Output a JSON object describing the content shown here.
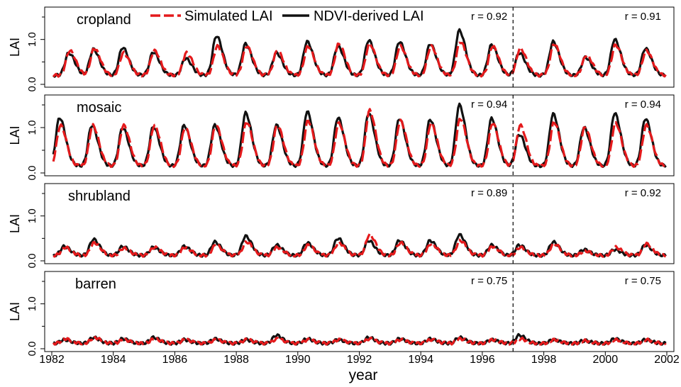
{
  "chart_data": {
    "type": "line",
    "xlabel": "year",
    "ylabel": "LAI",
    "xlim": [
      1982,
      2002
    ],
    "ylim": [
      0,
      1.5
    ],
    "x_ticks": [
      "1982",
      "1984",
      "1986",
      "1988",
      "1990",
      "1992",
      "1994",
      "1996",
      "1998",
      "2000",
      "2002"
    ],
    "y_ticks": [
      "0.0",
      "1.0"
    ],
    "divider_x": 1997,
    "legend": {
      "location": "top-center",
      "entries": [
        {
          "name": "Simulated LAI",
          "color": "#e41a1c",
          "style": "dashed"
        },
        {
          "name": "NDVI-derived LAI",
          "color": "#111111",
          "style": "solid"
        }
      ]
    },
    "colors": {
      "simulated": "#e41a1c",
      "ndvi": "#111111",
      "divider": "#000000"
    },
    "panels": [
      {
        "label": "cropland",
        "r_before": "r = 0.92",
        "r_after": "r = 0.91",
        "peak_years": [
          1982.55,
          1983.35,
          1984.3,
          1985.3,
          1986.35,
          1987.35,
          1988.3,
          1989.3,
          1990.3,
          1991.3,
          1992.3,
          1993.3,
          1994.3,
          1995.25,
          1996.3,
          1997.2,
          1998.3,
          1999.35,
          2000.3,
          2001.3
        ],
        "ndvi_peaks": [
          0.7,
          0.78,
          0.82,
          0.72,
          0.58,
          1.08,
          0.9,
          0.7,
          0.95,
          0.85,
          0.98,
          0.95,
          0.9,
          1.2,
          0.88,
          0.7,
          0.95,
          0.6,
          1.0,
          0.8
        ],
        "sim_peaks": [
          0.75,
          0.8,
          0.7,
          0.75,
          0.7,
          0.85,
          0.85,
          0.75,
          0.85,
          0.9,
          0.9,
          0.85,
          0.85,
          0.95,
          0.85,
          0.8,
          0.9,
          0.65,
          0.88,
          0.75
        ],
        "base": 0.2
      },
      {
        "label": "mosaic",
        "r_before": "r = 0.94",
        "r_after": "r = 0.94",
        "peak_years": [
          1982.25,
          1983.3,
          1984.3,
          1985.3,
          1986.3,
          1987.3,
          1988.3,
          1989.3,
          1990.3,
          1991.3,
          1992.3,
          1993.3,
          1994.3,
          1995.25,
          1996.3,
          1997.2,
          1998.3,
          1999.3,
          2000.3,
          2001.3
        ],
        "ndvi_peaks": [
          1.22,
          1.05,
          1.0,
          1.02,
          1.05,
          1.05,
          1.32,
          1.05,
          1.35,
          1.22,
          1.32,
          1.2,
          1.18,
          1.5,
          1.2,
          0.85,
          1.3,
          1.0,
          1.32,
          1.2
        ],
        "sim_peaks": [
          1.05,
          1.05,
          1.05,
          1.05,
          1.0,
          1.05,
          1.12,
          1.05,
          1.15,
          1.1,
          1.38,
          1.15,
          1.1,
          1.2,
          1.1,
          1.05,
          1.12,
          1.0,
          1.1,
          1.05
        ],
        "base": 0.15
      },
      {
        "label": "shrubland",
        "r_before": "r = 0.89",
        "r_after": "r = 0.92",
        "peak_years": [
          1982.4,
          1983.35,
          1984.3,
          1985.3,
          1986.3,
          1987.3,
          1988.3,
          1989.3,
          1990.3,
          1991.3,
          1992.3,
          1993.3,
          1994.3,
          1995.25,
          1996.3,
          1997.2,
          1998.3,
          1999.3,
          2000.3,
          2001.3
        ],
        "ndvi_peaks": [
          0.32,
          0.48,
          0.32,
          0.3,
          0.32,
          0.42,
          0.55,
          0.35,
          0.4,
          0.5,
          0.45,
          0.45,
          0.45,
          0.58,
          0.35,
          0.35,
          0.42,
          0.25,
          0.25,
          0.35
        ],
        "sim_peaks": [
          0.3,
          0.4,
          0.28,
          0.3,
          0.3,
          0.35,
          0.42,
          0.3,
          0.35,
          0.4,
          0.58,
          0.4,
          0.38,
          0.45,
          0.32,
          0.3,
          0.38,
          0.22,
          0.3,
          0.38
        ],
        "base": 0.12
      },
      {
        "label": "barren",
        "r_before": "r = 0.75",
        "r_after": "r = 0.75",
        "peak_years": [
          1982.4,
          1983.35,
          1984.3,
          1985.3,
          1986.3,
          1987.3,
          1988.3,
          1989.3,
          1990.3,
          1991.3,
          1992.3,
          1993.3,
          1994.3,
          1995.25,
          1996.3,
          1997.2,
          1998.3,
          1999.3,
          2000.3,
          2001.3
        ],
        "ndvi_peaks": [
          0.2,
          0.25,
          0.22,
          0.25,
          0.2,
          0.22,
          0.2,
          0.3,
          0.22,
          0.2,
          0.25,
          0.22,
          0.22,
          0.25,
          0.2,
          0.3,
          0.2,
          0.18,
          0.22,
          0.2
        ],
        "sim_peaks": [
          0.22,
          0.25,
          0.2,
          0.22,
          0.2,
          0.2,
          0.2,
          0.22,
          0.2,
          0.2,
          0.22,
          0.2,
          0.2,
          0.22,
          0.2,
          0.22,
          0.2,
          0.18,
          0.2,
          0.2
        ],
        "base": 0.12
      }
    ]
  }
}
